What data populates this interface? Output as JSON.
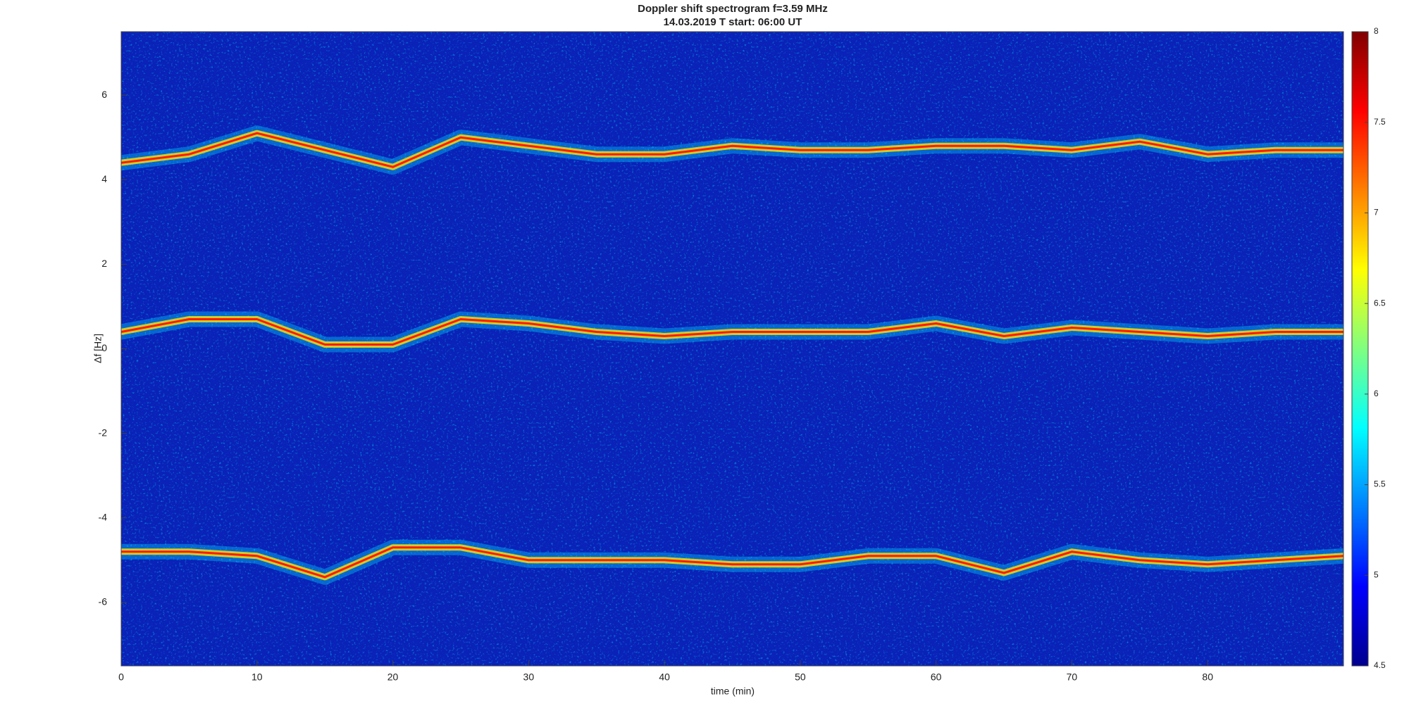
{
  "chart_data": {
    "type": "spectrogram",
    "title": "Doppler shift spectrogram f=3.59 MHz",
    "subtitle": "14.03.2019   T start: 06:00 UT",
    "xlabel": "time (min)",
    "ylabel": "Δf [Hz]",
    "xlim": [
      0,
      90
    ],
    "xticks": [
      0,
      10,
      20,
      30,
      40,
      50,
      60,
      70,
      80
    ],
    "ylim": [
      -7.5,
      7.5
    ],
    "yticks": [
      -6,
      -4,
      -2,
      0,
      2,
      4,
      6
    ],
    "colormap": "jet",
    "clim": [
      4.5,
      8
    ],
    "cticks": [
      4.5,
      5,
      5.5,
      6,
      6.5,
      7,
      7.5,
      8
    ],
    "x": [
      0,
      5,
      10,
      15,
      20,
      25,
      30,
      35,
      40,
      45,
      50,
      55,
      60,
      65,
      70,
      75,
      80,
      85,
      90
    ],
    "series": [
      {
        "color": "#ff1a00",
        "values": [
          4.4,
          4.6,
          5.1,
          4.7,
          4.3,
          5.0,
          4.8,
          4.6,
          4.6,
          4.8,
          4.7,
          4.7,
          4.8,
          4.8,
          4.7,
          4.9,
          4.6,
          4.7,
          4.7
        ]
      },
      {
        "color": "#ff1a00",
        "values": [
          0.4,
          0.7,
          0.7,
          0.1,
          0.1,
          0.7,
          0.6,
          0.4,
          0.3,
          0.4,
          0.4,
          0.4,
          0.6,
          0.3,
          0.5,
          0.4,
          0.3,
          0.4,
          0.4
        ]
      },
      {
        "color": "#ff1a00",
        "values": [
          -4.8,
          -4.8,
          -4.9,
          -5.4,
          -4.7,
          -4.7,
          -5.0,
          -5.0,
          -5.0,
          -5.1,
          -5.1,
          -4.9,
          -4.9,
          -5.3,
          -4.8,
          -5.0,
          -5.1,
          -5.0,
          -4.9
        ]
      }
    ]
  }
}
